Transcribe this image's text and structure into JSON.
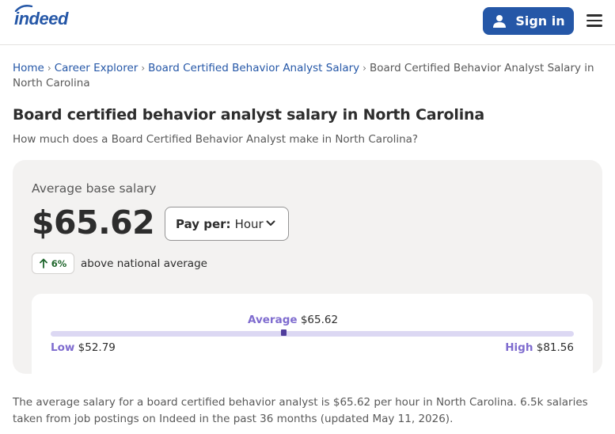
{
  "header": {
    "logo_text": "indeed",
    "signin_label": "Sign in"
  },
  "breadcrumb": {
    "items": [
      "Home",
      "Career Explorer",
      "Board Certified Behavior Analyst Salary"
    ],
    "current": "Board Certified Behavior Analyst Salary in North Carolina"
  },
  "page": {
    "title": "Board certified behavior analyst salary in North Carolina",
    "subtitle": "How much does a Board Certified Behavior Analyst make in North Carolina?"
  },
  "salary_card": {
    "average_label": "Average base salary",
    "average_value": "$65.62",
    "pay_per_label": "Pay per:",
    "pay_per_value": "Hour",
    "change_value": "6%",
    "change_text": "above national average",
    "range": {
      "average_label": "Average",
      "average_value": "$65.62",
      "low_label": "Low",
      "low_value": "$52.79",
      "high_label": "High",
      "high_value": "$81.56",
      "low": 52.79,
      "average": 65.62,
      "high": 81.56
    }
  },
  "summary_text": "The average salary for a board certified behavior analyst is $65.62 per hour in North Carolina.  6.5k salaries taken from job postings on Indeed in the past 36 months (updated May 11, 2026).",
  "colors": {
    "brand_blue": "#2557a7",
    "accent_purple": "#7f6ccf",
    "marker_purple": "#4f3c9c",
    "positive_green": "#1f662c"
  }
}
